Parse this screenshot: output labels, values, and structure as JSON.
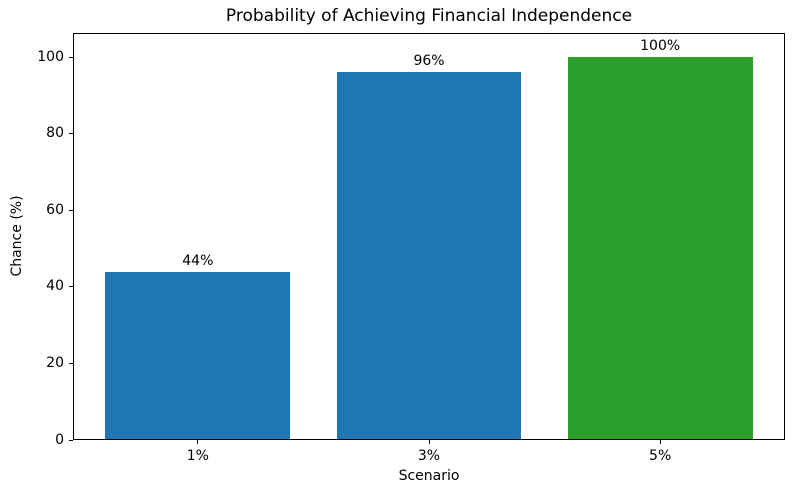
{
  "chart_data": {
    "type": "bar",
    "title": "Probability of Achieving Financial Independence",
    "xlabel": "Scenario",
    "ylabel": "Chance (%)",
    "categories": [
      "1%",
      "3%",
      "5%"
    ],
    "values": [
      44,
      96,
      100
    ],
    "bar_labels": [
      "44%",
      "96%",
      "100%"
    ],
    "bar_colors": [
      "#1f77b4",
      "#1f77b4",
      "#2ca02c"
    ],
    "yticks": [
      0,
      20,
      40,
      60,
      80,
      100
    ],
    "ylim": [
      0,
      106.3
    ],
    "xlim_pad_units": 0.54,
    "bar_width_units": 0.8,
    "grid": false,
    "legend": null,
    "frame": true,
    "background_color": "#ffffff",
    "text_color": "#000000"
  }
}
